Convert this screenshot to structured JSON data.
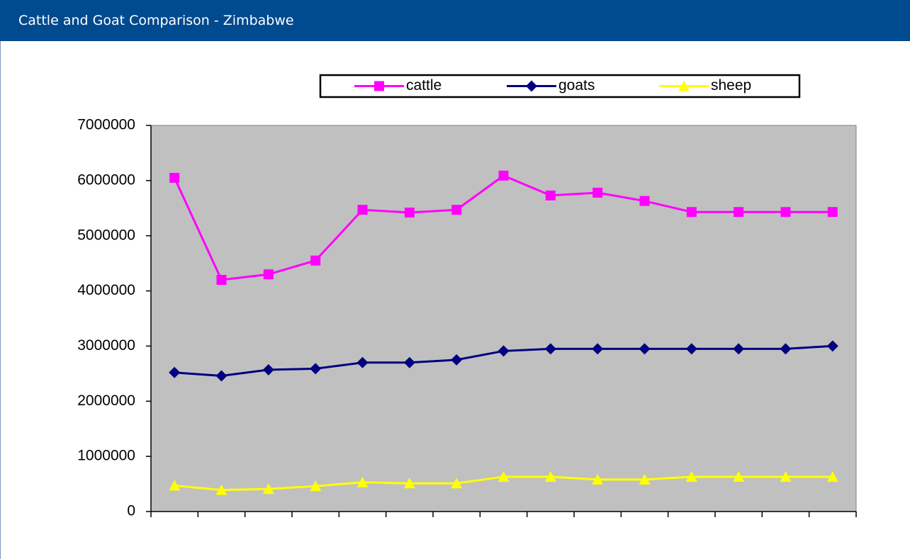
{
  "header": {
    "title": "Cattle and Goat Comparison - Zimbabwe"
  },
  "chart_data": {
    "type": "line",
    "categories": [
      null,
      null,
      null,
      null,
      null,
      null,
      null,
      null,
      null,
      null,
      null,
      null,
      null,
      null,
      null
    ],
    "series": [
      {
        "name": "cattle",
        "color": "#ff00ff",
        "marker": "square",
        "values": [
          6050000,
          4200000,
          4300000,
          4550000,
          5470000,
          5420000,
          5470000,
          6090000,
          5730000,
          5780000,
          5630000,
          5430000,
          5430000,
          5430000,
          5430000
        ]
      },
      {
        "name": "goats",
        "color": "#000080",
        "marker": "diamond",
        "values": [
          2520000,
          2460000,
          2570000,
          2590000,
          2700000,
          2700000,
          2750000,
          2910000,
          2950000,
          2950000,
          2950000,
          2950000,
          2950000,
          2950000,
          3000000
        ]
      },
      {
        "name": "sheep",
        "color": "#ffff00",
        "marker": "triangle",
        "values": [
          470000,
          390000,
          410000,
          460000,
          530000,
          510000,
          510000,
          630000,
          630000,
          580000,
          580000,
          630000,
          630000,
          630000,
          630000
        ]
      }
    ],
    "ylim": [
      0,
      7000000
    ],
    "yticks": [
      0,
      1000000,
      2000000,
      3000000,
      4000000,
      5000000,
      6000000,
      7000000
    ],
    "grid": false,
    "legend": "top",
    "plot_background": "#c0c0c0"
  }
}
